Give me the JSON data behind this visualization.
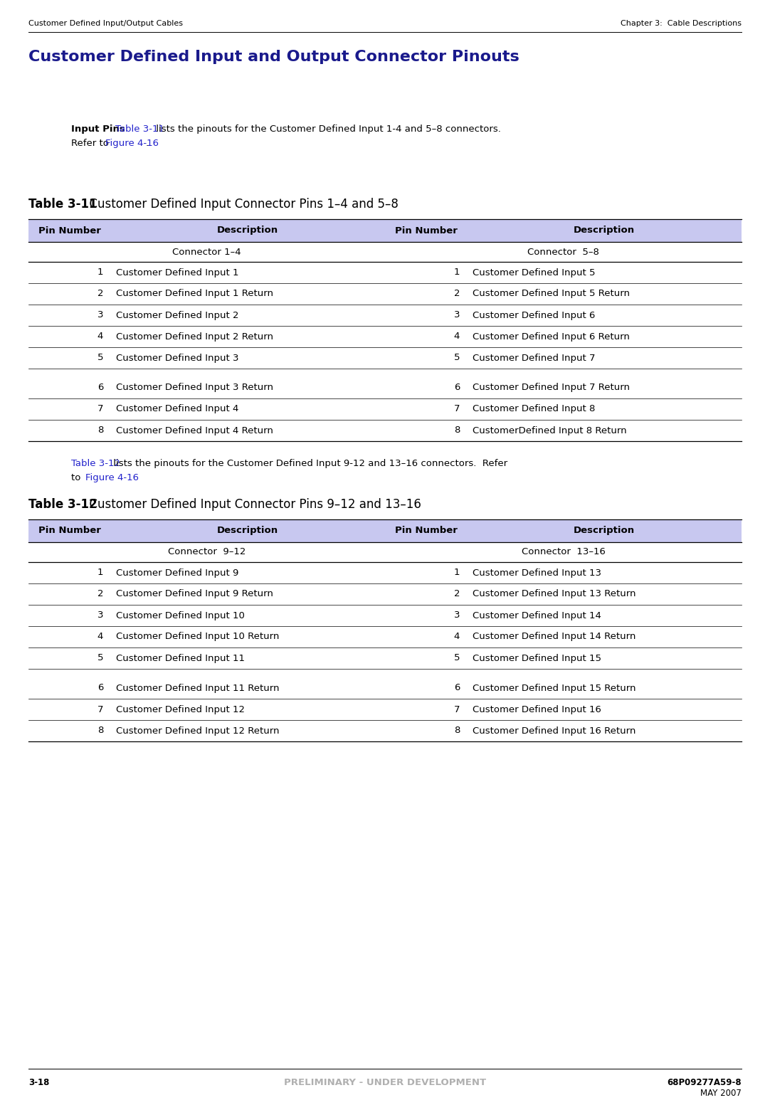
{
  "header_left": "Customer Defined Input/Output Cables",
  "header_right": "Chapter 3:  Cable Descriptions",
  "page_title": "Customer Defined Input and Output Connector Pinouts",
  "intro_bold": "Input Pins",
  "intro_link1": "Table 3-11",
  "intro_rest1": " lists the pinouts for the Customer Defined Input 1-4 and 5–8 connectors.",
  "intro_line2_pre": "Refer to ",
  "intro_link2": "Figure 4-16",
  "intro_line2_post": ".",
  "table1_label_bold": "Table 3-11",
  "table1_label_normal": "  Customer Defined Input Connector Pins 1–4 and 5–8",
  "table1_headers": [
    "Pin Number",
    "Description",
    "Pin Number",
    "Description"
  ],
  "table1_sub_left": "Connector 1–4",
  "table1_sub_right": "Connector  5–8",
  "table1_rows": [
    [
      "1",
      "Customer Defined Input 1",
      "1",
      "Customer Defined Input 5"
    ],
    [
      "2",
      "Customer Defined Input 1 Return",
      "2",
      "Customer Defined Input 5 Return"
    ],
    [
      "3",
      "Customer Defined Input 2",
      "3",
      "Customer Defined Input 6"
    ],
    [
      "4",
      "Customer Defined Input 2 Return",
      "4",
      "Customer Defined Input 6 Return"
    ],
    [
      "5",
      "Customer Defined Input 3",
      "5",
      "Customer Defined Input 7"
    ],
    [
      "6",
      "Customer Defined Input 3 Return",
      "6",
      "Customer Defined Input 7 Return"
    ],
    [
      "7",
      "Customer Defined Input 4",
      "7",
      "Customer Defined Input 8"
    ],
    [
      "8",
      "Customer Defined Input 4 Return",
      "8",
      "CustomerDefined Input 8 Return"
    ]
  ],
  "inter_link": "Table 3-12",
  "inter_rest": " lists the pinouts for the Customer Defined Input 9-12 and 13–16 connectors.  Refer",
  "inter_line2_pre": "to ",
  "inter_link2": "Figure 4-16",
  "table2_label_bold": "Table 3-12",
  "table2_label_normal": "  Customer Defined Input Connector Pins 9–12 and 13–16",
  "table2_headers": [
    "Pin Number",
    "Description",
    "Pin Number",
    "Description"
  ],
  "table2_sub_left": "Connector  9–12",
  "table2_sub_right": "Connector  13–16",
  "table2_rows": [
    [
      "1",
      "Customer Defined Input 9",
      "1",
      "Customer Defined Input 13"
    ],
    [
      "2",
      "Customer Defined Input 9 Return",
      "2",
      "Customer Defined Input 13 Return"
    ],
    [
      "3",
      "Customer Defined Input 10",
      "3",
      "Customer Defined Input 14"
    ],
    [
      "4",
      "Customer Defined Input 10 Return",
      "4",
      "Customer Defined Input 14 Return"
    ],
    [
      "5",
      "Customer Defined Input 11",
      "5",
      "Customer Defined Input 15"
    ],
    [
      "6",
      "Customer Defined Input 11 Return",
      "6",
      "Customer Defined Input 15 Return"
    ],
    [
      "7",
      "Customer Defined Input 12",
      "7",
      "Customer Defined Input 16"
    ],
    [
      "8",
      "Customer Defined Input 12 Return",
      "8",
      "Customer Defined Input 16 Return"
    ]
  ],
  "footer_left": "3-18",
  "footer_center": "PRELIMINARY - UNDER DEVELOPMENT",
  "footer_right1": "68P09277A59-8",
  "footer_right2": "MAY 2007",
  "title_color": "#1a1a8c",
  "link_color": "#2222cc",
  "table_header_bg": "#c8c8f0",
  "footer_prelim_color": "#b0b0b0",
  "bg_color": "#ffffff",
  "gap_after_row5": true
}
